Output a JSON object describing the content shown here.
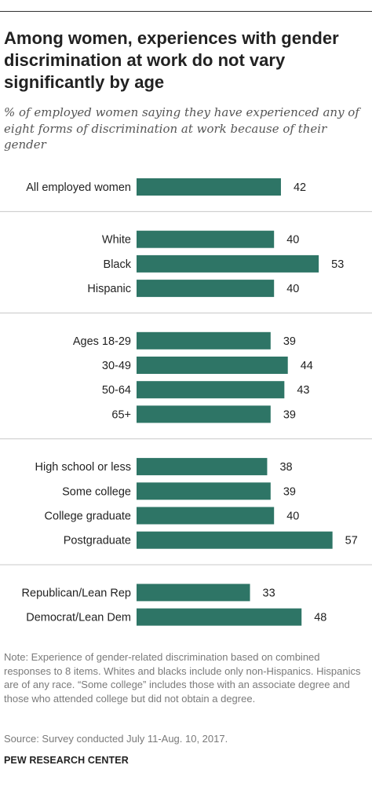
{
  "header": {
    "title": "Among women, experiences with gender discrimination at work do not vary significantly by age",
    "subtitle": "% of employed women saying they have experienced any of eight forms of discrimination at work because of their gender"
  },
  "footer": {
    "note": "Note: Experience of gender-related discrimination based on combined responses to 8 items. Whites and blacks include only non-Hispanics. Hispanics are of any race. “Some college” includes those with an associate degree and those who attended college but did not obtain a degree.",
    "source": "Source: Survey conducted July 11-Aug. 10, 2017.",
    "organization": "PEW RESEARCH CENTER"
  },
  "colors": {
    "bar": "#2e7566",
    "divider": "#c8c8c8",
    "text": "#222222"
  },
  "chart_data": {
    "type": "bar",
    "orientation": "horizontal",
    "title": "Among women, experiences with gender discrimination at work do not vary significantly by age",
    "subtitle": "% of employed women saying they have experienced any of eight forms of discrimination at work because of their gender",
    "categories": [
      "All employed women",
      "White",
      "Black",
      "Hispanic",
      "Ages 18-29",
      "30-49",
      "50-64",
      "65+",
      "High school or less",
      "Some college",
      "College graduate",
      "Postgraduate",
      "Republican/Lean Rep",
      "Democrat/Lean Dem"
    ],
    "values": [
      42,
      40,
      53,
      40,
      39,
      44,
      43,
      39,
      38,
      39,
      40,
      57,
      33,
      48
    ],
    "groups": [
      {
        "categories": [
          "All employed women"
        ]
      },
      {
        "categories": [
          "White",
          "Black",
          "Hispanic"
        ]
      },
      {
        "categories": [
          "Ages 18-29",
          "30-49",
          "50-64",
          "65+"
        ]
      },
      {
        "categories": [
          "High school or less",
          "Some college",
          "College graduate",
          "Postgraduate"
        ]
      },
      {
        "categories": [
          "Republican/Lean Rep",
          "Democrat/Lean Dem"
        ]
      }
    ],
    "xlim": [
      0,
      60
    ],
    "grid": false,
    "legend": "none",
    "data_labels": true
  }
}
